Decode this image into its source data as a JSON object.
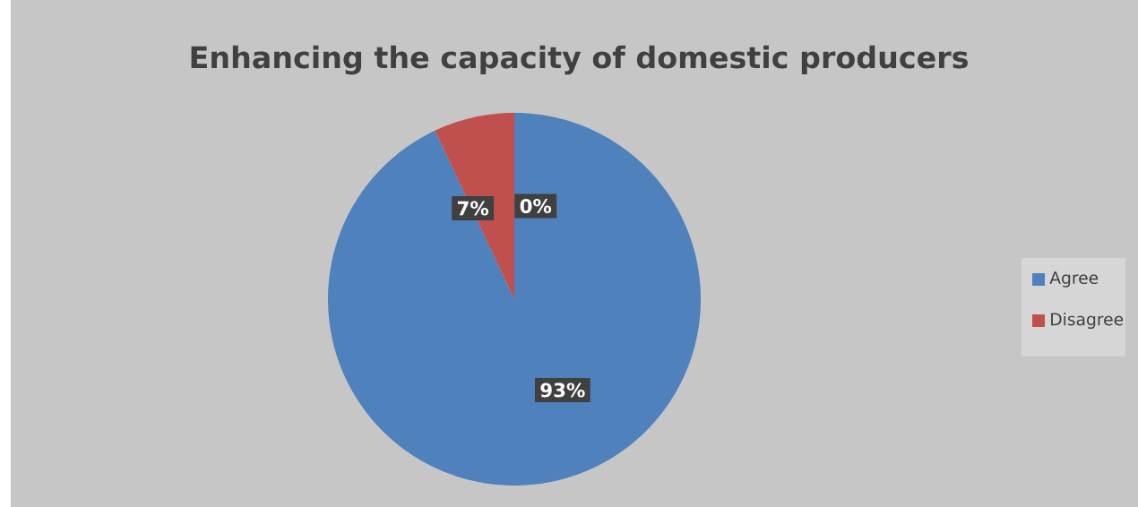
{
  "chart_data": {
    "type": "pie",
    "title": "Enhancing the capacity of domestic producers",
    "categories": [
      "Agree",
      "Disagree",
      null
    ],
    "values": [
      93,
      7,
      0
    ],
    "value_labels": [
      "93%",
      "7%",
      "0%"
    ],
    "colors": [
      "#4f81bd",
      "#c0504d",
      "#9bbb59"
    ],
    "legend": "right"
  }
}
